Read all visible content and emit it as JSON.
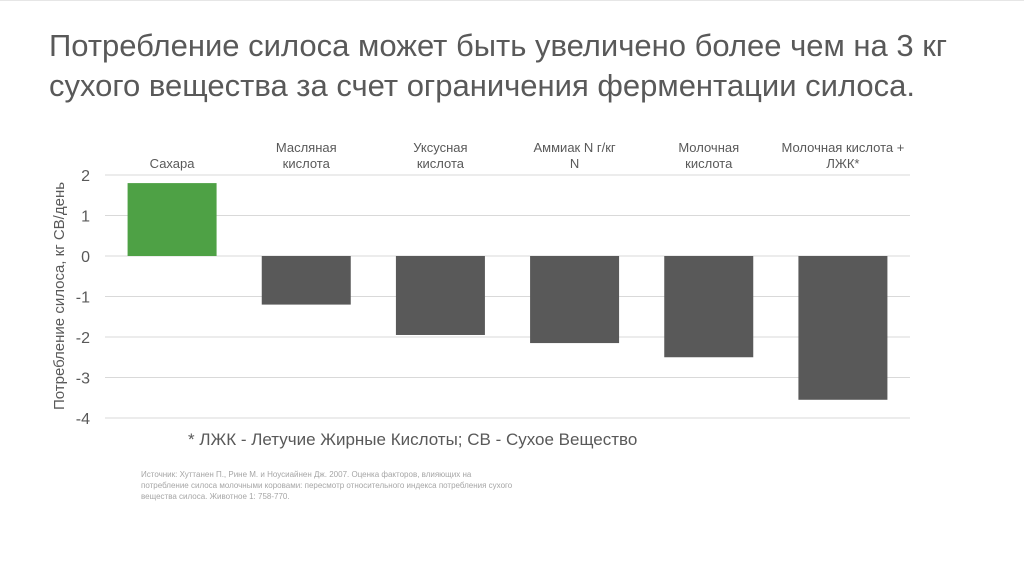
{
  "slide": {
    "title": "Потребление силоса может быть увеличено более чем на 3 кг сухого вещества за счет ограничения ферментации силоса.",
    "footnote": "* ЛЖК - Летучие Жирные Кислоты; СВ - Сухое Вещество",
    "source": "Источник: Хуттанен П., Рине М. и Ноусиайнен Дж. 2007. Оценка факторов, влияющих на потребление силоса молочными коровами: пересмотр относительного индекса потребления сухого вещества силоса. Животное 1: 758-770."
  },
  "chart_data": {
    "type": "bar",
    "title": "",
    "xlabel": "",
    "ylabel": "Потребление силоса, кг СВ/день",
    "ylim": [
      -4,
      2
    ],
    "yticks": [
      2,
      1,
      0,
      -1,
      -2,
      -3,
      -4
    ],
    "grid": true,
    "categories": [
      [
        "Сахара"
      ],
      [
        "Масляная",
        "кислота"
      ],
      [
        "Уксусная",
        "кислота"
      ],
      [
        "Аммиак N г/кг",
        "N"
      ],
      [
        "Молочная",
        "кислота"
      ],
      [
        "Молочная кислота +",
        "ЛЖК*"
      ]
    ],
    "values": [
      1.8,
      -1.2,
      -1.95,
      -2.15,
      -2.5,
      -3.55
    ],
    "colors": {
      "positive": "#4ea145",
      "negative": "#595959",
      "gridline": "#d9d9d9",
      "axis_text": "#595959"
    }
  }
}
